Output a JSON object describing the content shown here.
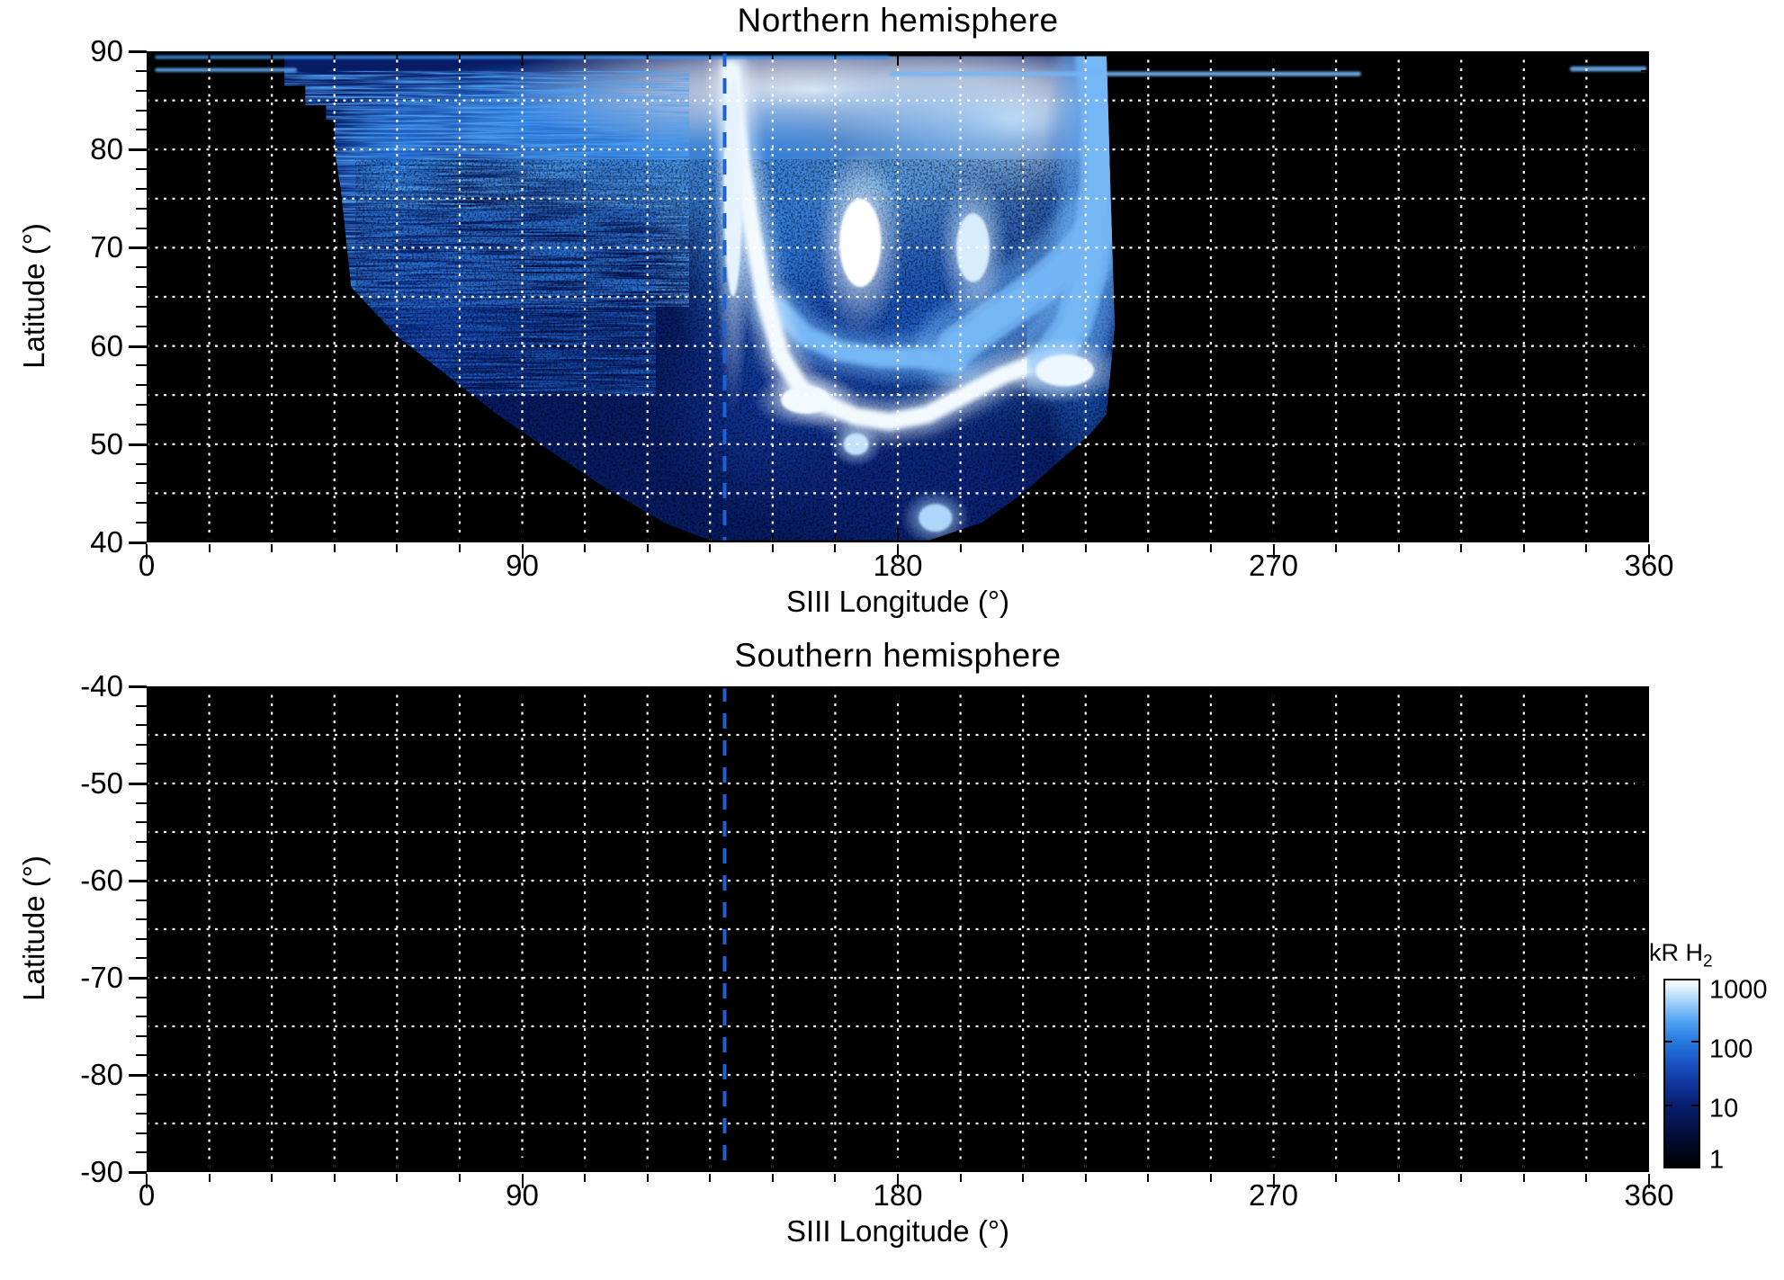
{
  "colorbar": {
    "label_main": "kR H",
    "label_sub": "2",
    "scale": "log",
    "ticks": [
      "1000",
      "100",
      "10",
      "1"
    ],
    "tick_values": [
      1000,
      100,
      10,
      1
    ],
    "range": [
      1,
      1000
    ],
    "gradient": [
      {
        "t": 0.0,
        "c": "#000000"
      },
      {
        "t": 0.18,
        "c": "#030f3d"
      },
      {
        "t": 0.33,
        "c": "#081f6e"
      },
      {
        "t": 0.4,
        "c": "#0c2a8a"
      },
      {
        "t": 0.52,
        "c": "#1648b8"
      },
      {
        "t": 0.67,
        "c": "#2577e0"
      },
      {
        "t": 0.78,
        "c": "#51a2f2"
      },
      {
        "t": 0.88,
        "c": "#9dcdf8"
      },
      {
        "t": 0.95,
        "c": "#d8edfd"
      },
      {
        "t": 1.0,
        "c": "#ffffff"
      }
    ]
  },
  "style": {
    "plot_background": "#000000",
    "grid_color": "#ffffff",
    "axis_color": "#000000",
    "reference_line_color": "#2160d0"
  },
  "chart_data": [
    {
      "type": "heatmap",
      "title": "Northern hemisphere",
      "xlabel": "SIII Longitude (°)",
      "ylabel": "Latitude (°)",
      "xlim": [
        0,
        360
      ],
      "ylim": [
        40,
        90
      ],
      "xticks": [
        0,
        90,
        180,
        270,
        360
      ],
      "yticks": [
        90,
        80,
        70,
        60,
        50,
        40
      ],
      "axis_style": {
        "x_minor_interval": 15,
        "y_minor_interval": 2,
        "x_major_interval": 90,
        "y_major_interval": 10
      },
      "grid": {
        "x_interval_deg": 15,
        "y_interval_deg": 5,
        "style": "dotted-white"
      },
      "legend": "none",
      "reference_line": {
        "lon": 138.5,
        "style": "dashed"
      },
      "background_value_kR": 0,
      "emission": {
        "boundary_polygon_lon_lat": [
          [
            33,
            90
          ],
          [
            33,
            86.5
          ],
          [
            38,
            86.5
          ],
          [
            38,
            84.5
          ],
          [
            43,
            84.5
          ],
          [
            43,
            83
          ],
          [
            45,
            83
          ],
          [
            45,
            80
          ],
          [
            46.5,
            76
          ],
          [
            48,
            70
          ],
          [
            49,
            66
          ],
          [
            60,
            61
          ],
          [
            72,
            57
          ],
          [
            84,
            53
          ],
          [
            96,
            49.5
          ],
          [
            110,
            45.5
          ],
          [
            124,
            42
          ],
          [
            133,
            40.5
          ],
          [
            137,
            40
          ],
          [
            186,
            40
          ],
          [
            200,
            42
          ],
          [
            210,
            45
          ],
          [
            218,
            48
          ],
          [
            226,
            51
          ],
          [
            230,
            53
          ],
          [
            232,
            62
          ],
          [
            231,
            75
          ],
          [
            230,
            90
          ]
        ],
        "features": [
          {
            "kind": "base",
            "value_kR": 8,
            "label": "diffuse dark-blue background emission"
          },
          {
            "kind": "glow",
            "lon": 120,
            "lat": 80,
            "rlon": 48,
            "rlat": 9,
            "value_kR": 150
          },
          {
            "kind": "glow",
            "lon": 90,
            "lat": 83,
            "rlon": 38,
            "rlat": 6,
            "value_kR": 120
          },
          {
            "kind": "glow",
            "lon": 60,
            "lat": 79,
            "rlon": 18,
            "rlat": 9,
            "value_kR": 90
          },
          {
            "kind": "glow",
            "lon": 70,
            "lat": 64,
            "rlon": 24,
            "rlat": 9,
            "value_kR": 25
          },
          {
            "kind": "glow",
            "lon": 160,
            "lat": 86,
            "rlon": 78,
            "rlat": 6.5,
            "value_kR": 1000,
            "label": "saturated polar band"
          },
          {
            "kind": "glow",
            "lon": 207,
            "lat": 83,
            "rlon": 42,
            "rlat": 8,
            "value_kR": 800
          },
          {
            "kind": "glow",
            "lon": 176,
            "lat": 76,
            "rlon": 64,
            "rlat": 13,
            "value_kR": 260
          },
          {
            "kind": "glow",
            "lon": 150,
            "lat": 70,
            "rlon": 26,
            "rlat": 16,
            "value_kR": 120
          },
          {
            "kind": "glow",
            "lon": 186,
            "lat": 62,
            "rlon": 50,
            "rlat": 15,
            "value_kR": 60
          },
          {
            "kind": "glow",
            "lon": 152,
            "lat": 55,
            "rlon": 32,
            "rlat": 13,
            "value_kR": 25
          },
          {
            "kind": "glow",
            "lon": 186,
            "lat": 46,
            "rlon": 42,
            "rlat": 9,
            "value_kR": 14
          },
          {
            "kind": "glow",
            "lon": 225,
            "lat": 68,
            "rlon": 12,
            "rlat": 26,
            "value_kR": 90
          },
          {
            "kind": "striation",
            "region": [
              33,
              64,
              130,
              88
            ],
            "value_kR": 210,
            "orientation": "horizontal"
          },
          {
            "kind": "striation",
            "region": [
              50,
              55,
              122,
              74
            ],
            "value_kR": 70,
            "orientation": "horizontal"
          },
          {
            "kind": "speckle",
            "region": [
              50,
              40,
              232,
              79
            ],
            "opacity": 0.5,
            "label": "dark noise speckle"
          },
          {
            "kind": "arc",
            "points": [
              [
                151,
                64
              ],
              [
                158,
                61
              ],
              [
                166,
                59.5
              ],
              [
                176,
                58.8
              ],
              [
                186,
                58.8
              ],
              [
                194,
                58.3
              ]
            ],
            "width_deg": 1.4,
            "value_kR": 300,
            "label": "secondary arc"
          },
          {
            "kind": "arc",
            "points": [
              [
                194,
                60
              ],
              [
                204,
                63
              ],
              [
                214,
                66
              ],
              [
                222,
                69
              ],
              [
                228,
                72
              ]
            ],
            "width_deg": 2.5,
            "value_kR": 300,
            "label": "dusk-side band"
          },
          {
            "kind": "arc",
            "points": [
              [
                140,
                88
              ],
              [
                142,
                80
              ],
              [
                145,
                72
              ],
              [
                148,
                65
              ],
              [
                152,
                59
              ],
              [
                157,
                55.5
              ],
              [
                163,
                54
              ],
              [
                170,
                52.8
              ],
              [
                178,
                52.3
              ],
              [
                187,
                53
              ],
              [
                196,
                55
              ],
              [
                205,
                57
              ],
              [
                213,
                58.2
              ]
            ],
            "width_deg": 1.2,
            "value_kR": 900,
            "label": "main auroral arc"
          },
          {
            "kind": "arc",
            "points": [
              [
                216,
                58.5
              ],
              [
                222,
                62
              ],
              [
                226,
                68
              ],
              [
                228,
                76
              ],
              [
                228.5,
                84
              ],
              [
                227,
                89
              ]
            ],
            "width_deg": 2.4,
            "value_kR": 300,
            "label": "poleward branch"
          },
          {
            "kind": "blob",
            "lon": 140.5,
            "lat": 76,
            "rlon": 2.2,
            "rlat": 11,
            "value_kR": 800,
            "label": "bright column at reference longitude"
          },
          {
            "kind": "blob",
            "lon": 171,
            "lat": 70.5,
            "rlon": 5,
            "rlat": 4.5,
            "value_kR": 1000,
            "label": "brightest emission patch"
          },
          {
            "kind": "blob",
            "lon": 198,
            "lat": 70,
            "rlon": 4,
            "rlat": 3.5,
            "value_kR": 700
          },
          {
            "kind": "blob",
            "lon": 220,
            "lat": 57.5,
            "rlon": 7,
            "rlat": 1.6,
            "value_kR": 850
          },
          {
            "kind": "blob",
            "lon": 158,
            "lat": 54.5,
            "rlon": 6,
            "rlat": 1.4,
            "value_kR": 900,
            "label": "bright hook bottom"
          },
          {
            "kind": "blob",
            "lon": 170,
            "lat": 50,
            "rlon": 3,
            "rlat": 1.1,
            "value_kR": 600
          },
          {
            "kind": "blob",
            "lon": 189,
            "lat": 42.5,
            "rlon": 4,
            "rlat": 1.4,
            "value_kR": 500
          }
        ],
        "streaks": [
          {
            "lat": 89.4,
            "lon1": 2,
            "lon2": 178,
            "width_deg": 0.35,
            "value_kR": 150,
            "label": "thin near-pole streak"
          },
          {
            "lat": 88.1,
            "lon1": 2,
            "lon2": 36,
            "width_deg": 0.4,
            "value_kR": 250
          },
          {
            "lat": 87.7,
            "lon1": 178,
            "lon2": 291,
            "width_deg": 0.45,
            "value_kR": 300
          },
          {
            "lat": 88.2,
            "lon1": 341,
            "lon2": 359.5,
            "width_deg": 0.5,
            "value_kR": 280
          }
        ]
      }
    },
    {
      "type": "heatmap",
      "title": "Southern hemisphere",
      "xlabel": "SIII Longitude (°)",
      "ylabel": "Latitude (°)",
      "xlim": [
        0,
        360
      ],
      "ylim": [
        -90,
        -40
      ],
      "xticks": [
        0,
        90,
        180,
        270,
        360
      ],
      "yticks": [
        -40,
        -50,
        -60,
        -70,
        -80,
        -90
      ],
      "axis_style": {
        "x_minor_interval": 15,
        "y_minor_interval": 2,
        "x_major_interval": 90,
        "y_major_interval": 10
      },
      "grid": {
        "x_interval_deg": 15,
        "y_interval_deg": 5,
        "style": "dotted-white"
      },
      "legend": "none",
      "reference_line": {
        "lon": 138.5,
        "style": "dashed"
      },
      "background_value_kR": 0,
      "emission": {
        "boundary_polygon_lon_lat": [],
        "features": [],
        "streaks": [],
        "note": "no emission visible (entirely black)"
      }
    }
  ]
}
